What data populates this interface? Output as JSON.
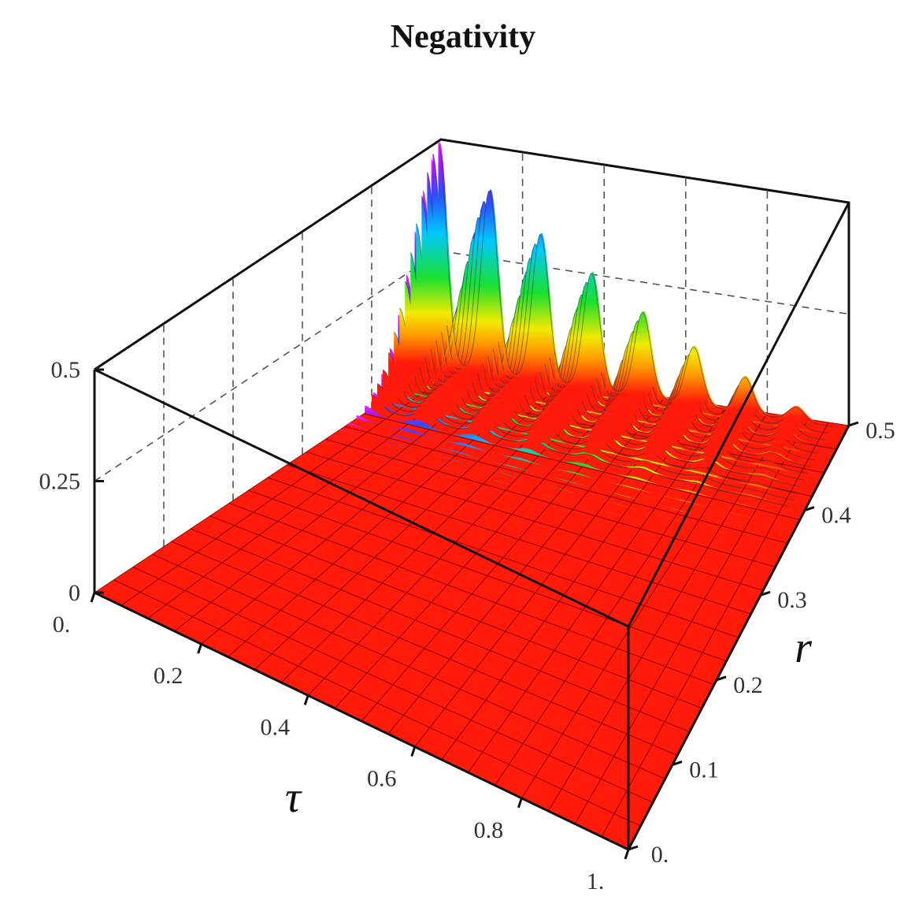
{
  "chart_data": {
    "type": "surface3d",
    "title": "Negativity",
    "x_axis": {
      "label": "τ",
      "range": [
        0,
        1
      ],
      "ticks": [
        "0.",
        "0.2",
        "0.4",
        "0.6",
        "0.8",
        "1."
      ]
    },
    "y_axis": {
      "label": "r",
      "range": [
        0,
        0.5
      ],
      "ticks": [
        "0.",
        "0.1",
        "0.2",
        "0.3",
        "0.4",
        "0.5"
      ]
    },
    "z_axis": {
      "label": "",
      "range": [
        0,
        0.5
      ],
      "ticks": [
        "0",
        "0.25",
        "0.5"
      ]
    },
    "surface": {
      "description": "zero everywhere except near r = 0.5, where a row of Gaussian peaks decays along τ",
      "peak_ridge_r": 0.5,
      "peaks": [
        {
          "tau": 0.0,
          "value": 0.5
        },
        {
          "tau": 0.125,
          "value": 0.41
        },
        {
          "tau": 0.25,
          "value": 0.33
        },
        {
          "tau": 0.375,
          "value": 0.26
        },
        {
          "tau": 0.5,
          "value": 0.19
        },
        {
          "tau": 0.625,
          "value": 0.13
        },
        {
          "tau": 0.75,
          "value": 0.08
        },
        {
          "tau": 0.875,
          "value": 0.03
        }
      ],
      "base_color": "#ff1a0a",
      "color_scale": [
        "#ff1a0a",
        "#ffae00",
        "#f0f000",
        "#20e020",
        "#00c8ff",
        "#2050ff",
        "#8a1cff",
        "#ff20ff"
      ]
    },
    "box": true,
    "grid": true
  }
}
